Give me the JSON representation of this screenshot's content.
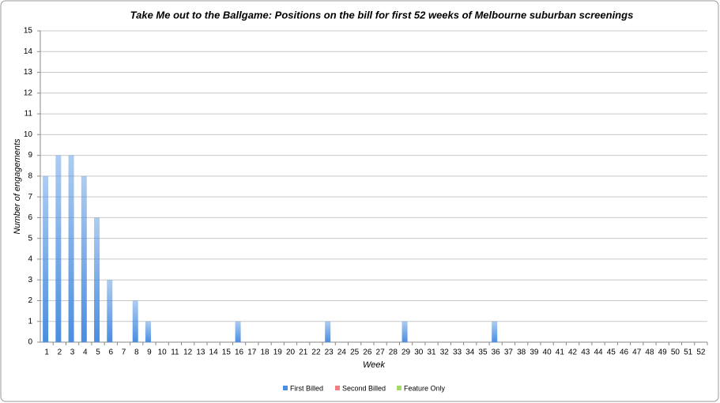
{
  "chart_data": {
    "type": "bar",
    "title": "Take Me out to the Ballgame: Positions on the bill for first 52 weeks of Melbourne suburban screenings",
    "x_label": "Week",
    "y_label": "Number of engagements",
    "categories": [
      "1",
      "2",
      "3",
      "4",
      "5",
      "6",
      "7",
      "8",
      "9",
      "10",
      "11",
      "12",
      "13",
      "14",
      "15",
      "16",
      "17",
      "18",
      "19",
      "20",
      "21",
      "22",
      "23",
      "24",
      "25",
      "26",
      "27",
      "28",
      "29",
      "30",
      "31",
      "32",
      "33",
      "34",
      "35",
      "36",
      "37",
      "38",
      "39",
      "40",
      "41",
      "42",
      "43",
      "44",
      "45",
      "46",
      "47",
      "48",
      "49",
      "50",
      "51",
      "52"
    ],
    "series": [
      {
        "name": "First Billed",
        "color": "#4a8ee0",
        "values": [
          8,
          9,
          9,
          8,
          6,
          3,
          0,
          2,
          1,
          0,
          0,
          0,
          0,
          0,
          0,
          1,
          0,
          0,
          0,
          0,
          0,
          0,
          1,
          0,
          0,
          0,
          0,
          0,
          1,
          0,
          0,
          0,
          0,
          0,
          0,
          1,
          0,
          0,
          0,
          0,
          0,
          0,
          0,
          0,
          0,
          0,
          0,
          0,
          0,
          0,
          0,
          0
        ]
      },
      {
        "name": "Second Billed",
        "color": "#f07f7f",
        "values": [
          0,
          0,
          0,
          0,
          0,
          0,
          0,
          0,
          0,
          0,
          0,
          0,
          0,
          0,
          0,
          0,
          0,
          0,
          0,
          0,
          0,
          0,
          0,
          0,
          0,
          0,
          0,
          0,
          0,
          0,
          0,
          0,
          0,
          0,
          0,
          0,
          0,
          0,
          0,
          0,
          0,
          0,
          0,
          0,
          0,
          0,
          0,
          0,
          0,
          0,
          0,
          0
        ]
      },
      {
        "name": "Feature Only",
        "color": "#a6d96a",
        "values": [
          0,
          0,
          0,
          0,
          0,
          0,
          0,
          0,
          0,
          0,
          0,
          0,
          0,
          0,
          0,
          0,
          0,
          0,
          0,
          0,
          0,
          0,
          0,
          0,
          0,
          0,
          0,
          0,
          0,
          0,
          0,
          0,
          0,
          0,
          0,
          0,
          0,
          0,
          0,
          0,
          0,
          0,
          0,
          0,
          0,
          0,
          0,
          0,
          0,
          0,
          0,
          0
        ]
      }
    ],
    "ylim": [
      0,
      15
    ],
    "yticks": [
      0,
      1,
      2,
      3,
      4,
      5,
      6,
      7,
      8,
      9,
      10,
      11,
      12,
      13,
      14,
      15
    ],
    "grid": true,
    "legend": "bottom"
  }
}
